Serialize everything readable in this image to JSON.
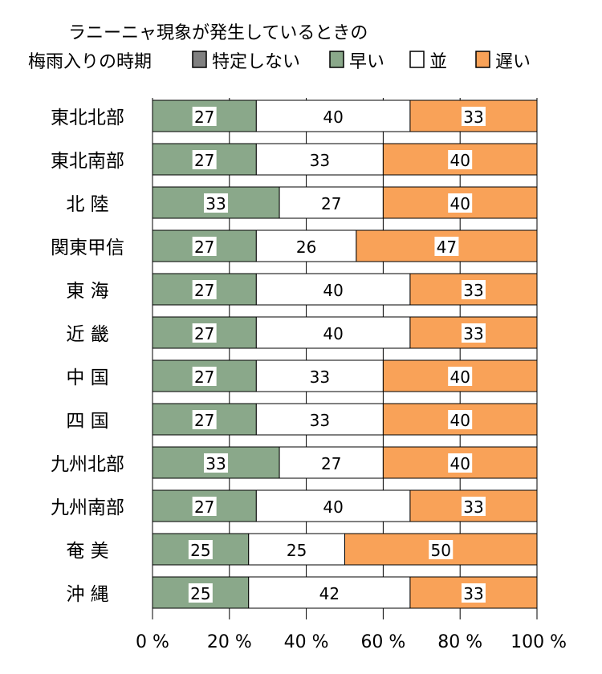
{
  "chart_data": {
    "type": "bar",
    "orientation": "horizontal",
    "stacked": true,
    "title_line1": "ラニーニャ現象が発生しているときの",
    "title_line2": "梅雨入りの時期",
    "categories": [
      "東北北部",
      "東北南部",
      "北 陸",
      "関東甲信",
      "東 海",
      "近 畿",
      "中 国",
      "四 国",
      "九州北部",
      "九州南部",
      "奄 美",
      "沖 縄"
    ],
    "series": [
      {
        "name": "特定しない",
        "color": "#808080",
        "values": [
          0,
          0,
          0,
          0,
          0,
          0,
          0,
          0,
          0,
          0,
          0,
          0
        ]
      },
      {
        "name": "早い",
        "color": "#8aa88a",
        "values": [
          27,
          27,
          33,
          27,
          27,
          27,
          27,
          27,
          33,
          27,
          25,
          25
        ]
      },
      {
        "name": "並",
        "color": "#ffffff",
        "values": [
          40,
          33,
          27,
          26,
          40,
          40,
          33,
          33,
          27,
          40,
          25,
          42
        ]
      },
      {
        "name": "遅い",
        "color": "#f9a258",
        "values": [
          33,
          40,
          40,
          47,
          33,
          33,
          40,
          40,
          40,
          33,
          50,
          33
        ]
      }
    ],
    "xlim": [
      0,
      100
    ],
    "xticks": [
      "0 %",
      "20 %",
      "40 %",
      "60 %",
      "80 %",
      "100 %"
    ],
    "grid": true,
    "legend_position": "top"
  }
}
